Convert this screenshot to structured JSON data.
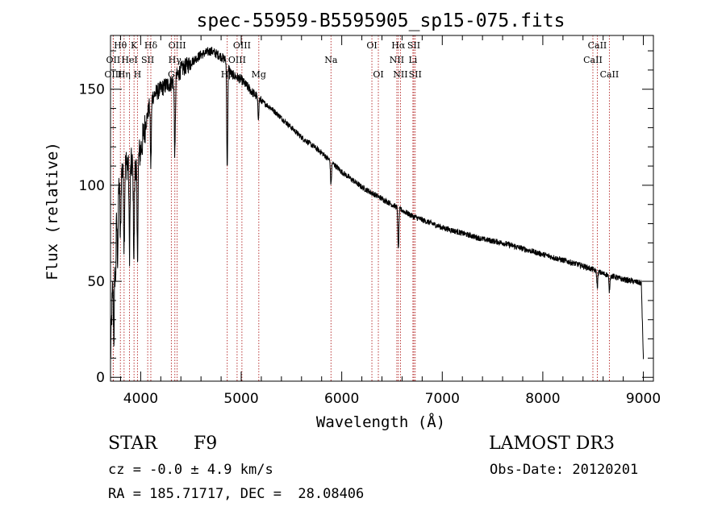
{
  "chart_data": {
    "type": "line",
    "title": "spec-55959-B5595905_sp15-075.fits",
    "xlabel": "Wavelength (Å)",
    "ylabel": "Flux (relative)",
    "xlim": [
      3700,
      9100
    ],
    "ylim": [
      -2,
      178
    ],
    "x_ticks": [
      "4000",
      "5000",
      "6000",
      "7000",
      "8000",
      "9000"
    ],
    "y_ticks": [
      "0",
      "50",
      "100",
      "150"
    ],
    "series": [
      {
        "name": "flux",
        "anchors": [
          [
            3700,
            10
          ],
          [
            3720,
            45
          ],
          [
            3750,
            80
          ],
          [
            3790,
            105
          ],
          [
            3830,
            110
          ],
          [
            3880,
            112
          ],
          [
            3920,
            110
          ],
          [
            3960,
            112
          ],
          [
            4000,
            118
          ],
          [
            4050,
            132
          ],
          [
            4100,
            145
          ],
          [
            4150,
            148
          ],
          [
            4200,
            150
          ],
          [
            4250,
            152
          ],
          [
            4300,
            153
          ],
          [
            4350,
            156
          ],
          [
            4400,
            160
          ],
          [
            4500,
            164
          ],
          [
            4600,
            168
          ],
          [
            4700,
            170
          ],
          [
            4800,
            167
          ],
          [
            4850,
            165
          ],
          [
            4900,
            158
          ],
          [
            5000,
            155
          ],
          [
            5100,
            149
          ],
          [
            5200,
            144
          ],
          [
            5300,
            140
          ],
          [
            5400,
            135
          ],
          [
            5500,
            130
          ],
          [
            5600,
            125
          ],
          [
            5700,
            121
          ],
          [
            5800,
            117
          ],
          [
            5900,
            112
          ],
          [
            6000,
            107
          ],
          [
            6100,
            103
          ],
          [
            6200,
            99
          ],
          [
            6300,
            96
          ],
          [
            6400,
            93
          ],
          [
            6500,
            90
          ],
          [
            6600,
            87
          ],
          [
            6700,
            84
          ],
          [
            6800,
            82
          ],
          [
            6900,
            80
          ],
          [
            7000,
            78
          ],
          [
            7200,
            75
          ],
          [
            7400,
            72
          ],
          [
            7600,
            70
          ],
          [
            7800,
            67
          ],
          [
            8000,
            64
          ],
          [
            8200,
            61
          ],
          [
            8400,
            58
          ],
          [
            8600,
            54
          ],
          [
            8800,
            51
          ],
          [
            8900,
            50
          ],
          [
            8980,
            49
          ],
          [
            9000,
            10
          ]
        ],
        "absorption": [
          [
            3734,
            40
          ],
          [
            3750,
            28
          ],
          [
            3771,
            30
          ],
          [
            3798,
            35
          ],
          [
            3835,
            40
          ],
          [
            3889,
            45
          ],
          [
            3933,
            48
          ],
          [
            3968,
            50
          ],
          [
            4101,
            35
          ],
          [
            4340,
            40
          ],
          [
            4861,
            55
          ],
          [
            5170,
            10
          ],
          [
            5893,
            12
          ],
          [
            6563,
            22
          ],
          [
            8542,
            8
          ],
          [
            8662,
            8
          ]
        ]
      }
    ],
    "lines": [
      {
        "label": "Hθ",
        "wl": 3798,
        "row": 1
      },
      {
        "label": "OII",
        "wl": 3727,
        "row": 2
      },
      {
        "label": "OIII",
        "wl": 3727,
        "row": 3
      },
      {
        "label": "K",
        "wl": 3934,
        "row": 1
      },
      {
        "label": "HeI",
        "wl": 3889,
        "row": 2
      },
      {
        "label": "Hη",
        "wl": 3835,
        "row": 3
      },
      {
        "label": "H",
        "wl": 3968,
        "row": 3
      },
      {
        "label": "SII",
        "wl": 4070,
        "row": 2
      },
      {
        "label": "Hδ",
        "wl": 4101,
        "row": 1
      },
      {
        "label": "OIII",
        "wl": 4363,
        "row": 1
      },
      {
        "label": "Hγ",
        "wl": 4340,
        "row": 2
      },
      {
        "label": "G",
        "wl": 4305,
        "row": 3
      },
      {
        "label": "OIII",
        "wl": 5007,
        "row": 1
      },
      {
        "label": "OIII",
        "wl": 4959,
        "row": 2
      },
      {
        "label": "Hβ",
        "wl": 4861,
        "row": 3
      },
      {
        "label": "Mg",
        "wl": 5175,
        "row": 3
      },
      {
        "label": "Na",
        "wl": 5893,
        "row": 2
      },
      {
        "label": "OI",
        "wl": 6300,
        "row": 1
      },
      {
        "label": "OI",
        "wl": 6364,
        "row": 3
      },
      {
        "label": "Hα",
        "wl": 6563,
        "row": 1
      },
      {
        "label": "NII",
        "wl": 6548,
        "row": 2
      },
      {
        "label": "NII",
        "wl": 6584,
        "row": 3
      },
      {
        "label": "SII",
        "wl": 6717,
        "row": 1
      },
      {
        "label": "Li",
        "wl": 6708,
        "row": 2
      },
      {
        "label": "SII",
        "wl": 6731,
        "row": 3
      },
      {
        "label": "CaII",
        "wl": 8542,
        "row": 1
      },
      {
        "label": "CaII",
        "wl": 8498,
        "row": 2
      },
      {
        "label": "CaII",
        "wl": 8662,
        "row": 3
      }
    ],
    "grid": false,
    "legend": "none"
  },
  "info": {
    "object_class": "STAR",
    "subclass": "F9",
    "survey": "LAMOST DR3",
    "redshift": "cz = -0.0 ± 4.9 km/s",
    "obs_date": "Obs-Date: 20120201",
    "coords": "RA = 185.71717, DEC =  28.08406"
  }
}
